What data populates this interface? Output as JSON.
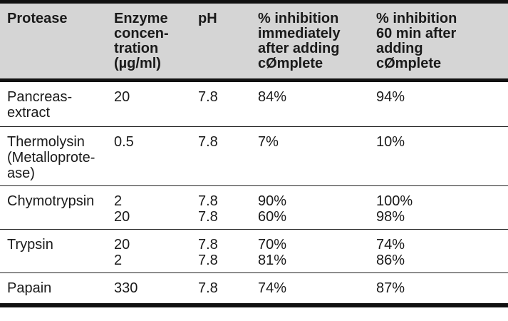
{
  "table": {
    "headers": [
      "Protease",
      "Enzyme\nconcen-\ntration\n(µg/ml)",
      "pH",
      "% inhibition\nimmediately\nafter adding\ncØmplete",
      "% inhibition\n60 min after\nadding\ncØmplete"
    ],
    "rows": [
      {
        "protease": "Pancreas-\nextract",
        "concentration": "20",
        "ph": "7.8",
        "immediate": "84%",
        "after60": "94%"
      },
      {
        "protease": "Thermolysin\n(Metalloprote-\nase)",
        "concentration": "0.5",
        "ph": "7.8",
        "immediate": "7%",
        "after60": "10%"
      },
      {
        "protease": "Chymotrypsin",
        "concentration": "2\n20",
        "ph": "7.8\n7.8",
        "immediate": "90%\n60%",
        "after60": "100%\n98%"
      },
      {
        "protease": "Trypsin",
        "concentration": "20\n2",
        "ph": "7.8\n7.8",
        "immediate": "70%\n81%",
        "after60": "74%\n86%"
      },
      {
        "protease": "Papain",
        "concentration": "330",
        "ph": "7.8",
        "immediate": "74%",
        "after60": "87%"
      }
    ]
  }
}
